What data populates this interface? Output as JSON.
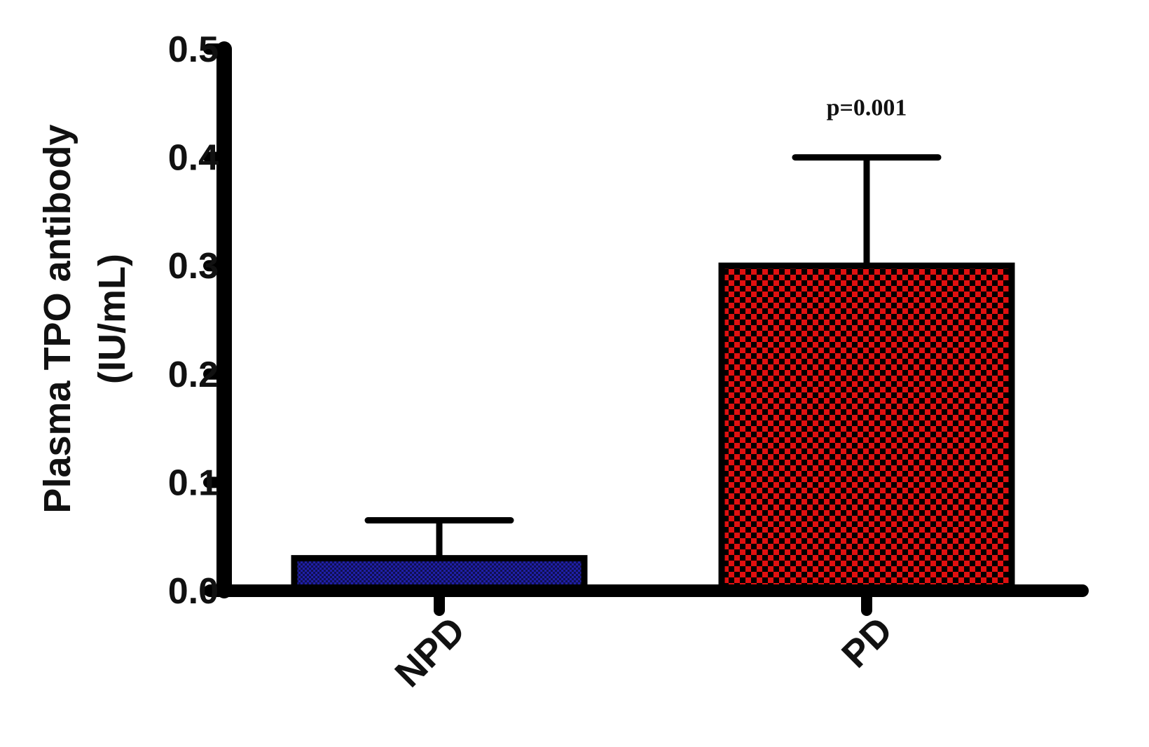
{
  "chart_data": {
    "type": "bar",
    "categories": [
      "NPD",
      "PD"
    ],
    "values": [
      0.03,
      0.3
    ],
    "errors": [
      0.035,
      0.1
    ],
    "colors": [
      "#1a1a8c",
      "#e01010"
    ],
    "ylabel_line1": "Plasma TPO antibody",
    "ylabel_line2": "(IU/mL)",
    "ylim": [
      0,
      0.5
    ],
    "yticks": [
      "0.0",
      "0.1",
      "0.2",
      "0.3",
      "0.4",
      "0.5"
    ],
    "annotations": [
      {
        "category": "PD",
        "text": "p=0.001"
      }
    ],
    "grid": false,
    "legend": "none"
  }
}
